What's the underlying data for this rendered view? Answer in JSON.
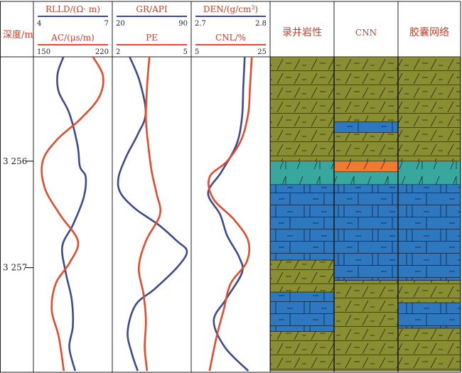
{
  "colors": {
    "blue_curve": "#3d4a8f",
    "red_curve": "#e64a2c",
    "dolomite_fill": "#8a8e32",
    "limestone_fill": "#2e78c0",
    "mixed_fill": "#38a89e",
    "orange_fill": "#f07a2e",
    "line": "#222222"
  },
  "depth_track": {
    "title": "深度/m",
    "ticks": [
      {
        "label": "3 256",
        "depth": 3256
      },
      {
        "label": "3 257",
        "depth": 3257
      }
    ]
  },
  "chart_data": [
    {
      "type": "line",
      "track": "RLLD / AC",
      "y_axis": "depth (m)",
      "ylim": [
        3257.97,
        3255.02
      ],
      "series": [
        {
          "name": "RLLD/(Ω· m)",
          "color": "#3d4a8f",
          "scale": {
            "left": "4",
            "right": "7",
            "min": 4,
            "max": 7
          },
          "points": [
            [
              5.1,
              3255.02
            ],
            [
              4.85,
              3255.18
            ],
            [
              4.9,
              3255.35
            ],
            [
              5.35,
              3255.55
            ],
            [
              5.7,
              3255.85
            ],
            [
              5.8,
              3256.05
            ],
            [
              6.05,
              3256.15
            ],
            [
              5.95,
              3256.35
            ],
            [
              5.5,
              3256.6
            ],
            [
              5.05,
              3256.8
            ],
            [
              5.2,
              3257.05
            ],
            [
              5.45,
              3257.3
            ],
            [
              5.5,
              3257.55
            ],
            [
              5.35,
              3257.75
            ],
            [
              5.6,
              3257.97
            ]
          ]
        },
        {
          "name": "AC/(μs/m)",
          "color": "#e64a2c",
          "scale": {
            "left": "150",
            "right": "220",
            "min": 150,
            "max": 220
          },
          "points": [
            [
              205,
              3255.02
            ],
            [
              215,
              3255.2
            ],
            [
              211,
              3255.4
            ],
            [
              193,
              3255.6
            ],
            [
              169,
              3255.8
            ],
            [
              155,
              3256.0
            ],
            [
              157,
              3256.25
            ],
            [
              172,
              3256.5
            ],
            [
              190,
              3256.75
            ],
            [
              182,
              3256.95
            ],
            [
              168,
              3257.15
            ],
            [
              164,
              3257.4
            ],
            [
              171,
              3257.65
            ],
            [
              176,
              3257.97
            ]
          ]
        }
      ]
    },
    {
      "type": "line",
      "track": "GR / PE",
      "y_axis": "depth (m)",
      "ylim": [
        3257.97,
        3255.02
      ],
      "series": [
        {
          "name": "GR/API",
          "color": "#3d4a8f",
          "scale": {
            "left": "20",
            "right": "90",
            "min": 20,
            "max": 90
          },
          "points": [
            [
              33,
              3255.02
            ],
            [
              43,
              3255.25
            ],
            [
              49,
              3255.55
            ],
            [
              41,
              3255.75
            ],
            [
              30,
              3255.95
            ],
            [
              22,
              3256.15
            ],
            [
              24,
              3256.3
            ],
            [
              39,
              3256.45
            ],
            [
              62,
              3256.6
            ],
            [
              80,
              3256.75
            ],
            [
              90,
              3256.85
            ],
            [
              80,
              3257.0
            ],
            [
              58,
              3257.2
            ],
            [
              39,
              3257.35
            ],
            [
              31,
              3257.6
            ],
            [
              35,
              3257.8
            ],
            [
              41,
              3257.97
            ]
          ]
        },
        {
          "name": "PE",
          "color": "#e64a2c",
          "scale": {
            "left": "2",
            "right": "5",
            "min": 2,
            "max": 5
          },
          "points": [
            [
              3.4,
              3255.02
            ],
            [
              3.3,
              3255.3
            ],
            [
              3.25,
              3255.6
            ],
            [
              3.35,
              3255.85
            ],
            [
              3.5,
              3256.1
            ],
            [
              3.7,
              3256.3
            ],
            [
              3.85,
              3256.5
            ],
            [
              3.25,
              3256.75
            ],
            [
              2.95,
              3257.0
            ],
            [
              3.15,
              3257.25
            ],
            [
              3.25,
              3257.5
            ],
            [
              3.2,
              3257.75
            ],
            [
              3.3,
              3257.97
            ]
          ]
        }
      ]
    },
    {
      "type": "line",
      "track": "DEN / CNL",
      "y_axis": "depth (m)",
      "ylim": [
        3257.97,
        3255.02
      ],
      "series": [
        {
          "name": "DEN/(g/cm3)",
          "color": "#3d4a8f",
          "scale": {
            "left": "2.7",
            "right": "2.8",
            "min": 2.7,
            "max": 2.8
          },
          "points": [
            [
              2.77,
              3255.02
            ],
            [
              2.768,
              3255.3
            ],
            [
              2.766,
              3255.6
            ],
            [
              2.758,
              3255.85
            ],
            [
              2.737,
              3256.1
            ],
            [
              2.718,
              3256.3
            ],
            [
              2.735,
              3256.5
            ],
            [
              2.745,
              3256.7
            ],
            [
              2.762,
              3256.9
            ],
            [
              2.766,
              3257.05
            ],
            [
              2.743,
              3257.3
            ],
            [
              2.726,
              3257.5
            ],
            [
              2.742,
              3257.75
            ],
            [
              2.775,
              3257.97
            ]
          ]
        },
        {
          "name": "CNL/%",
          "color": "#e64a2c",
          "scale": {
            "left": "5",
            "right": "25",
            "min": 5,
            "max": 25
          },
          "points": [
            [
              21,
              3255.02
            ],
            [
              20.5,
              3255.3
            ],
            [
              20,
              3255.55
            ],
            [
              18,
              3255.8
            ],
            [
              14,
              3256.0
            ],
            [
              9,
              3256.15
            ],
            [
              10,
              3256.35
            ],
            [
              16,
              3256.55
            ],
            [
              20,
              3256.75
            ],
            [
              19.5,
              3256.95
            ],
            [
              15,
              3257.15
            ],
            [
              13,
              3257.4
            ],
            [
              11,
              3257.65
            ],
            [
              9,
              3257.97
            ]
          ]
        }
      ]
    }
  ],
  "lithology_tracks": [
    {
      "title": "录井岩性",
      "layers": [
        {
          "top": 3255.02,
          "bottom": 3256.0,
          "rock": "dolomite"
        },
        {
          "top": 3256.0,
          "bottom": 3256.22,
          "rock": "mixed"
        },
        {
          "top": 3256.22,
          "bottom": 3256.93,
          "rock": "limestone"
        },
        {
          "top": 3256.93,
          "bottom": 3257.23,
          "rock": "dolomite"
        },
        {
          "top": 3257.23,
          "bottom": 3257.6,
          "rock": "limestone"
        },
        {
          "top": 3257.6,
          "bottom": 3257.97,
          "rock": "dolomite"
        }
      ]
    },
    {
      "title": "CNN",
      "layers": [
        {
          "top": 3255.02,
          "bottom": 3255.63,
          "rock": "dolomite"
        },
        {
          "top": 3255.63,
          "bottom": 3255.73,
          "rock": "limestone"
        },
        {
          "top": 3255.73,
          "bottom": 3256.0,
          "rock": "dolomite"
        },
        {
          "top": 3256.0,
          "bottom": 3256.1,
          "rock": "orange"
        },
        {
          "top": 3256.1,
          "bottom": 3256.22,
          "rock": "mixed"
        },
        {
          "top": 3256.22,
          "bottom": 3257.12,
          "rock": "limestone"
        },
        {
          "top": 3257.12,
          "bottom": 3257.97,
          "rock": "dolomite"
        }
      ]
    },
    {
      "title": "胶囊网络",
      "layers": [
        {
          "top": 3255.02,
          "bottom": 3256.0,
          "rock": "dolomite"
        },
        {
          "top": 3256.0,
          "bottom": 3256.22,
          "rock": "mixed"
        },
        {
          "top": 3256.22,
          "bottom": 3257.12,
          "rock": "limestone"
        },
        {
          "top": 3257.12,
          "bottom": 3257.33,
          "rock": "dolomite"
        },
        {
          "top": 3257.33,
          "bottom": 3257.57,
          "rock": "limestone"
        },
        {
          "top": 3257.57,
          "bottom": 3257.97,
          "rock": "dolomite"
        }
      ]
    }
  ]
}
